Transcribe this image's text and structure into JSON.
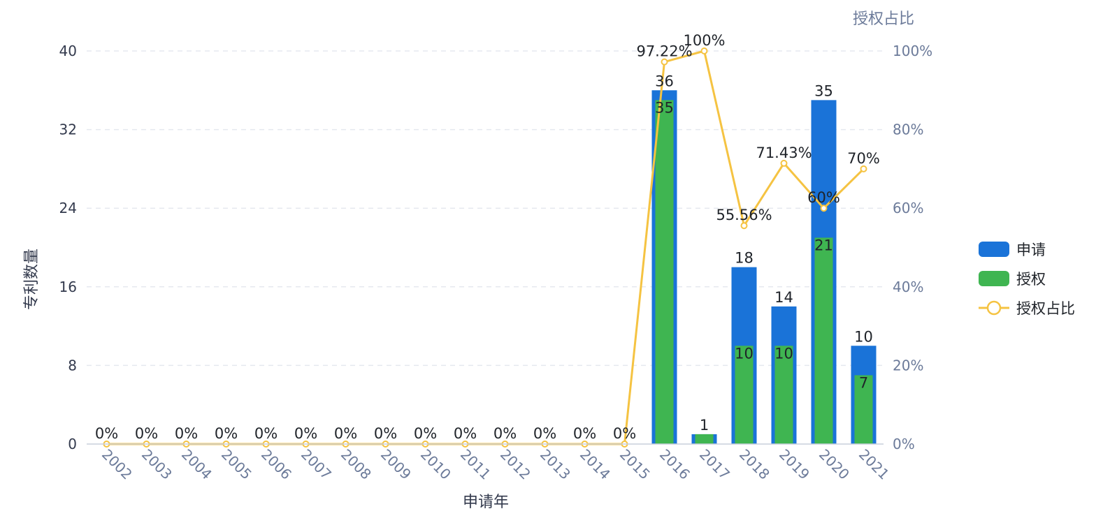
{
  "chart_data": {
    "type": "bar",
    "categories": [
      "2002",
      "2003",
      "2004",
      "2005",
      "2006",
      "2007",
      "2008",
      "2009",
      "2010",
      "2011",
      "2012",
      "2013",
      "2014",
      "2015",
      "2016",
      "2017",
      "2018",
      "2019",
      "2020",
      "2021"
    ],
    "series": [
      {
        "name": "申请",
        "type": "bar",
        "color": "#1a73d8",
        "values": [
          0,
          0,
          0,
          0,
          0,
          0,
          0,
          0,
          0,
          0,
          0,
          0,
          0,
          0,
          36,
          1,
          18,
          14,
          35,
          10
        ]
      },
      {
        "name": "授权",
        "type": "bar",
        "color": "#3fb551",
        "values": [
          0,
          0,
          0,
          0,
          0,
          0,
          0,
          0,
          0,
          0,
          0,
          0,
          0,
          0,
          35,
          1,
          10,
          10,
          21,
          7
        ]
      },
      {
        "name": "授权占比",
        "type": "line",
        "axis": "right",
        "color": "#f5c342",
        "values": [
          0,
          0,
          0,
          0,
          0,
          0,
          0,
          0,
          0,
          0,
          0,
          0,
          0,
          0,
          97.22,
          100,
          55.56,
          71.43,
          60,
          70
        ],
        "labels": [
          "0%",
          "0%",
          "0%",
          "0%",
          "0%",
          "0%",
          "0%",
          "0%",
          "0%",
          "0%",
          "0%",
          "0%",
          "0%",
          "0%",
          "97.22%",
          "100%",
          "55.56%",
          "71.43%",
          "60%",
          "70%"
        ]
      }
    ],
    "bar_labels": {
      "申请": [
        "",
        "",
        "",
        "",
        "",
        "",
        "",
        "",
        "",
        "",
        "",
        "",
        "",
        "",
        "36",
        "1",
        "18",
        "14",
        "35",
        "10"
      ],
      "授权": [
        "",
        "",
        "",
        "",
        "",
        "",
        "",
        "",
        "",
        "",
        "",
        "",
        "",
        "",
        "35",
        "",
        "10",
        "10",
        "21",
        "7"
      ]
    },
    "xlabel": "申请年",
    "ylabel": "专利数量",
    "ylabel_right": "授权占比",
    "ylim": [
      0,
      40
    ],
    "ylim_right": [
      0,
      100
    ],
    "yticks": [
      "0",
      "8",
      "16",
      "24",
      "32",
      "40"
    ],
    "yticks_right": [
      "0%",
      "20%",
      "40%",
      "60%",
      "80%",
      "100%"
    ],
    "grid": true,
    "legend": {
      "position": "right",
      "items": [
        "申请",
        "授权",
        "授权占比"
      ]
    }
  },
  "colors": {
    "apply": "#1a73d8",
    "grant": "#3fb551",
    "ratio": "#f5c342",
    "grid": "#e5e8ef",
    "axis": "#c9cfdb"
  }
}
